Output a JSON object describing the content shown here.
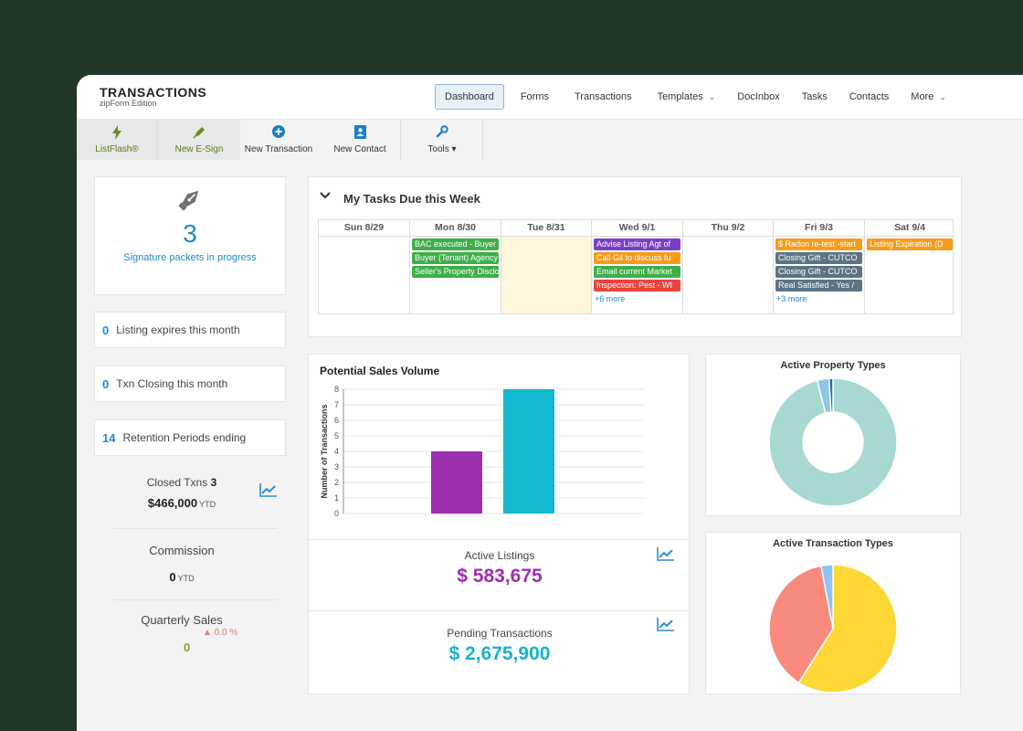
{
  "brand": {
    "title": "TRANSACTIONS",
    "subtitle": "zipForm Edition"
  },
  "nav": {
    "dashboard": "Dashboard",
    "forms": "Forms",
    "transactions": "Transactions",
    "templates": "Templates",
    "docinbox": "DocInbox",
    "tasks": "Tasks",
    "contacts": "Contacts",
    "more": "More"
  },
  "toolbar": {
    "listflash": "ListFlash®",
    "esign": "New E-Sign",
    "new_transaction": "New Transaction",
    "new_contact": "New Contact",
    "tools": "Tools ▾"
  },
  "signature": {
    "count": "3",
    "label": "Signature packets in progress"
  },
  "stats": [
    {
      "count": "0",
      "label": "Listing expires this month"
    },
    {
      "count": "0",
      "label": "Txn Closing this month"
    },
    {
      "count": "14",
      "label": "Retention Periods ending"
    }
  ],
  "closed": {
    "label": "Closed Txns",
    "count": "3",
    "value": "$466,000",
    "suffix": "YTD"
  },
  "commission": {
    "label": "Commission",
    "value": "0",
    "suffix": "YTD"
  },
  "quarterly": {
    "label": "Quarterly Sales",
    "change": "▲ 0.0 %",
    "value": "0"
  },
  "tasks": {
    "title": "My Tasks Due this Week",
    "days": [
      {
        "label": "Sun 8/29",
        "events": [],
        "more": ""
      },
      {
        "label": "Mon 8/30",
        "events": [
          {
            "text": "BAC executed - Buyer",
            "color": "#3fae49"
          },
          {
            "text": "Buyer (Tenant) Agency",
            "color": "#3fae49"
          },
          {
            "text": "Seller's Property Disclosure",
            "color": "#3fae49"
          }
        ],
        "more": ""
      },
      {
        "label": "Tue 8/31",
        "events": [],
        "more": ""
      },
      {
        "label": "Wed 9/1",
        "events": [
          {
            "text": "Advise Listing Agt of",
            "color": "#7b3fc4"
          },
          {
            "text": "Call Gil to discuss fu",
            "color": "#f59c1a"
          },
          {
            "text": "Email current Market",
            "color": "#3fae49"
          },
          {
            "text": "Inspection: Pest - WI",
            "color": "#e8453c"
          }
        ],
        "more": "+6 more"
      },
      {
        "label": "Thu 9/2",
        "events": [],
        "more": ""
      },
      {
        "label": "Fri 9/3",
        "events": [
          {
            "text": "$ Radon re-test -start",
            "color": "#f59c1a"
          },
          {
            "text": "Closing Gift - CUTCO",
            "color": "#5b7384"
          },
          {
            "text": "Closing Gift - CUTCO",
            "color": "#5b7384"
          },
          {
            "text": "Real Satisfied - Yes /",
            "color": "#5b7384"
          }
        ],
        "more": "+3 more"
      },
      {
        "label": "Sat 9/4",
        "events": [
          {
            "text": "Listing Expiration (D",
            "color": "#f59c1a"
          }
        ],
        "more": ""
      }
    ]
  },
  "potential_sales": {
    "title": "Potential Sales Volume"
  },
  "active_listings": {
    "label": "Active Listings",
    "value": "$ 583,675",
    "color": "#9b2fae"
  },
  "pending": {
    "label": "Pending Transactions",
    "value": "$ 2,675,900",
    "color": "#1ab0cc"
  },
  "chart_data": [
    {
      "type": "bar",
      "title": "Potential Sales Volume",
      "ylabel": "Number of Transactions",
      "xlabel": "",
      "categories": [
        "Active Listings",
        "Pending Transactions"
      ],
      "values": [
        4,
        8
      ],
      "colors": [
        "#9b2fae",
        "#13b8d0"
      ],
      "ylim": [
        0,
        8
      ],
      "yticks": [
        "0",
        "1",
        "2",
        "3",
        "4",
        "5",
        "6",
        "7",
        "8"
      ]
    },
    {
      "type": "pie",
      "title": "Active Property Types",
      "donut": true,
      "values": [
        96,
        3,
        1
      ],
      "colors": [
        "#a8d8d2",
        "#8ec5e8",
        "#2f6aa0"
      ]
    },
    {
      "type": "pie",
      "title": "Active Transaction Types",
      "donut": false,
      "values": [
        59,
        38,
        3
      ],
      "colors": [
        "#fdd835",
        "#f88a7e",
        "#90c4ee"
      ]
    }
  ]
}
